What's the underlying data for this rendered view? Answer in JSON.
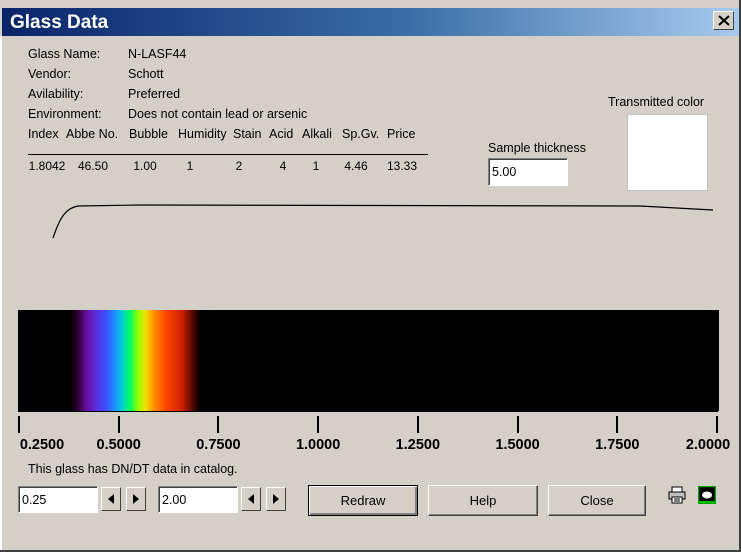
{
  "window": {
    "title": "Glass Data"
  },
  "glass_info": {
    "rows": [
      {
        "label": "Glass Name:",
        "value": "N-LASF44"
      },
      {
        "label": "Vendor:",
        "value": "Schott"
      },
      {
        "label": "Avilability:",
        "value": "Preferred"
      },
      {
        "label": "Environment:",
        "value": "Does not contain lead or arsenic"
      }
    ]
  },
  "properties_table": {
    "headers": [
      "Index",
      "Abbe No.",
      "Bubble",
      "Humidity",
      "Stain",
      "Acid",
      "Alkali",
      "Sp.Gv.",
      "Price"
    ],
    "values": [
      "1.8042",
      "46.50",
      "1.00",
      "1",
      "2",
      "4",
      "1",
      "4.46",
      "13.33"
    ]
  },
  "sample_thickness": {
    "label": "Sample thickness",
    "value": "5.00"
  },
  "transmitted_color": {
    "label": "Transmitted color",
    "color": "#ffffff"
  },
  "spectrum_axis": {
    "min": 0.25,
    "max": 2.0,
    "tick_labels": [
      "0.2500",
      "0.5000",
      "0.7500",
      "1.0000",
      "1.2500",
      "1.5000",
      "1.7500",
      "2.0000"
    ]
  },
  "note": "This glass has DN/DT data in catalog.",
  "range": {
    "min_value": "0.25",
    "max_value": "2.00"
  },
  "buttons": {
    "redraw": "Redraw",
    "help": "Help",
    "close": "Close"
  },
  "icons": {
    "title_close": "close-icon",
    "spin_left": "arrow-left-icon",
    "spin_right": "arrow-right-icon",
    "print": "printer-icon",
    "snapshot": "screenshot-icon"
  }
}
